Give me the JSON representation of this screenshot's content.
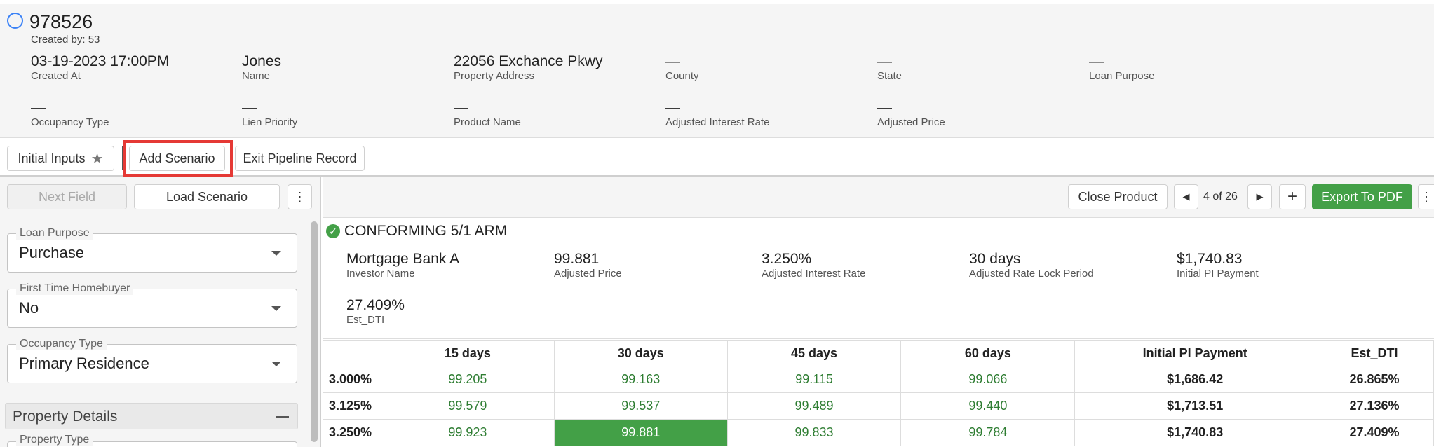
{
  "record": {
    "id": "978526",
    "created_by": "Created by: 53"
  },
  "header_fields": {
    "created_at": {
      "value": "03-19-2023 17:00PM",
      "label": "Created At"
    },
    "name": {
      "value": "Jones",
      "label": "Name"
    },
    "property_address": {
      "value": "22056 Exchance Pkwy",
      "label": "Property Address"
    },
    "county": {
      "value": "—",
      "label": "County"
    },
    "state": {
      "value": "—",
      "label": "State"
    },
    "loan_purpose": {
      "value": "—",
      "label": "Loan Purpose"
    },
    "occupancy_type": {
      "value": "—",
      "label": "Occupancy Type"
    },
    "lien_priority": {
      "value": "—",
      "label": "Lien Priority"
    },
    "product_name": {
      "value": "—",
      "label": "Product Name"
    },
    "adjusted_interest_rate": {
      "value": "—",
      "label": "Adjusted Interest Rate"
    },
    "adjusted_price": {
      "value": "—",
      "label": "Adjusted Price"
    }
  },
  "actions": {
    "initial_inputs": "Initial Inputs",
    "add_scenario": "Add Scenario",
    "exit_pipeline": "Exit Pipeline Record"
  },
  "left_toolbar": {
    "next_field": "Next Field",
    "load_scenario": "Load Scenario",
    "more": "⋮"
  },
  "form": {
    "loan_purpose": {
      "label": "Loan Purpose",
      "value": "Purchase"
    },
    "first_time_homebuyer": {
      "label": "First Time Homebuyer",
      "value": "No"
    },
    "occupancy_type": {
      "label": "Occupancy Type",
      "value": "Primary Residence"
    },
    "property_details": "Property Details",
    "property_type": {
      "label": "Property Type"
    }
  },
  "right_toolbar": {
    "close_product": "Close Product",
    "pager": "4 of 26",
    "prev": "◀",
    "next": "▶",
    "add": "+",
    "export": "Export To PDF",
    "more": "⋮"
  },
  "product": {
    "title": "CONFORMING 5/1 ARM",
    "check": "✓",
    "investor_name": {
      "value": "Mortgage Bank A",
      "label": "Investor Name"
    },
    "adjusted_price": {
      "value": "99.881",
      "label": "Adjusted Price"
    },
    "adjusted_interest_rate": {
      "value": "3.250%",
      "label": "Adjusted Interest Rate"
    },
    "adjusted_rate_lock": {
      "value": "30 days",
      "label": "Adjusted Rate Lock Period"
    },
    "initial_pi": {
      "value": "$1,740.83",
      "label": "Initial PI Payment"
    },
    "est_dti": {
      "value": "27.409%",
      "label": "Est_DTI"
    }
  },
  "pricing_table": {
    "headers": [
      "",
      "15 days",
      "30 days",
      "45 days",
      "60 days",
      "Initial PI Payment",
      "Est_DTI"
    ],
    "rows": [
      {
        "rate": "3.000%",
        "d15": "99.205",
        "d30": "99.163",
        "d45": "99.115",
        "d60": "99.066",
        "pi": "$1,686.42",
        "dti": "26.865%"
      },
      {
        "rate": "3.125%",
        "d15": "99.579",
        "d30": "99.537",
        "d45": "99.489",
        "d60": "99.440",
        "pi": "$1,713.51",
        "dti": "27.136%"
      },
      {
        "rate": "3.250%",
        "d15": "99.923",
        "d30": "99.881",
        "d45": "99.833",
        "d60": "99.784",
        "pi": "$1,740.83",
        "dti": "27.409%"
      }
    ]
  },
  "colors": {
    "accent_green": "#43a047",
    "highlight_red": "#e53935",
    "circle_blue": "#3b82f6"
  }
}
